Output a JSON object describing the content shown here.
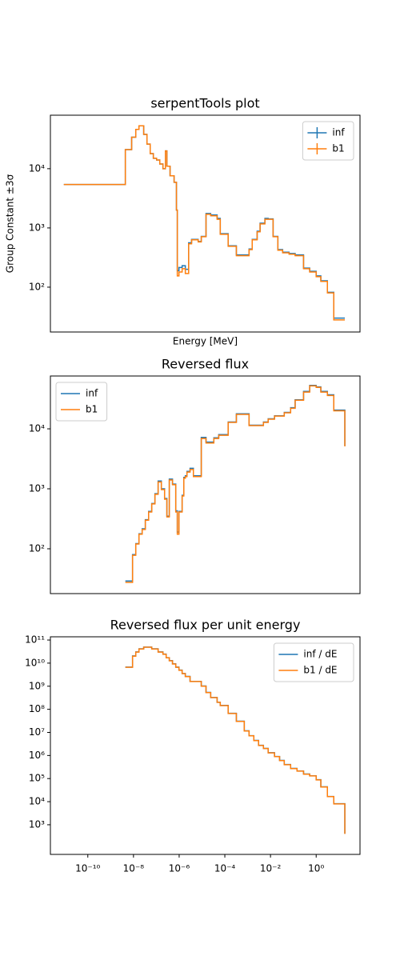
{
  "chart_data": [
    {
      "type": "step",
      "title": "serpentTools plot",
      "xlabel": "Energy [MeV]",
      "ylabel": "Group Constant  ±3σ",
      "xscale": "log",
      "yscale": "log",
      "xlim": [
        2.3e-12,
        83
      ],
      "ylim": [
        17.5,
        80000
      ],
      "yticks": [
        {
          "value": 100,
          "label": "10²"
        },
        {
          "value": 1000,
          "label": "10³"
        },
        {
          "value": 10000,
          "label": "10⁴"
        }
      ],
      "legend": "upper right",
      "legend_errorbars": true,
      "x": [
        8.9e-12,
        4.4e-09,
        8.3e-09,
        1.26e-08,
        1.74e-08,
        2.8e-08,
        3.9e-08,
        5.4e-08,
        7.4e-08,
        1.03e-07,
        1.42e-07,
        1.95e-07,
        2.5e-07,
        2.9e-07,
        4e-07,
        6e-07,
        7.6e-07,
        8.3e-07,
        9.8e-07,
        1.35e-06,
        1.86e-06,
        2.6e-06,
        3.5e-06,
        6.8e-06,
        9.3e-06,
        1.5e-05,
        2.4e-05,
        4.6e-05,
        6.3e-05,
        0.00014,
        0.00032,
        0.00115,
        0.00158,
        0.0026,
        0.0035,
        0.0057,
        0.0079,
        0.013,
        0.021,
        0.034,
        0.065,
        0.12,
        0.28,
        0.52,
        1.0,
        1.6,
        3.1,
        5.9,
        18
      ],
      "series": [
        {
          "name": "inf",
          "color": "#1f77b4",
          "values": [
            5400,
            21000,
            34000,
            46000,
            53000,
            38000,
            26000,
            18000,
            15000,
            14000,
            12000,
            10000,
            20000,
            11000,
            7600,
            5900,
            2000,
            190,
            215,
            230,
            200,
            560,
            640,
            590,
            720,
            1750,
            1650,
            1450,
            800,
            500,
            350,
            440,
            640,
            880,
            1200,
            1450,
            1420,
            720,
            430,
            390,
            370,
            350,
            210,
            185,
            155,
            128,
            82,
            30,
            30
          ]
        },
        {
          "name": "b1",
          "color": "#ff7f0e",
          "values": [
            5400,
            21000,
            34000,
            46000,
            53000,
            38000,
            26000,
            18000,
            15000,
            14000,
            12000,
            10000,
            20000,
            11000,
            7600,
            5900,
            2000,
            155,
            180,
            205,
            170,
            540,
            630,
            580,
            710,
            1700,
            1600,
            1400,
            780,
            490,
            340,
            430,
            630,
            860,
            1170,
            1400,
            1400,
            710,
            420,
            380,
            360,
            340,
            205,
            180,
            150,
            125,
            80,
            28,
            28
          ]
        }
      ]
    },
    {
      "type": "step",
      "title": "Reversed flux",
      "xscale": "log",
      "yscale": "log",
      "xlim": [
        2.3e-12,
        83
      ],
      "ylim": [
        17.9,
        76000
      ],
      "yticks": [
        {
          "value": 100,
          "label": "10²"
        },
        {
          "value": 1000,
          "label": "10³"
        },
        {
          "value": 10000,
          "label": "10⁴"
        }
      ],
      "legend": "upper left",
      "x": [
        4.4e-09,
        9.1e-09,
        1.26e-08,
        1.74e-08,
        2.4e-08,
        3.3e-08,
        4.6e-08,
        6.3e-08,
        8.7e-08,
        1.2e-07,
        1.66e-07,
        2.3e-07,
        2.9e-07,
        3.7e-07,
        5.1e-07,
        7.1e-07,
        8.3e-07,
        9.8e-07,
        1.35e-06,
        1.6e-06,
        1.86e-06,
        2.2e-06,
        3e-06,
        4.2e-06,
        9.3e-06,
        1.5e-05,
        3.3e-05,
        5.4e-05,
        0.00014,
        0.00032,
        0.00115,
        0.0049,
        0.0079,
        0.015,
        0.04,
        0.076,
        0.12,
        0.28,
        0.52,
        1.0,
        1.6,
        3.1,
        5.9,
        18
      ],
      "series": [
        {
          "name": "inf",
          "color": "#1f77b4",
          "values": [
            29,
            80,
            122,
            178,
            215,
            305,
            420,
            570,
            830,
            1350,
            1000,
            690,
            350,
            1450,
            1200,
            430,
            190,
            420,
            780,
            1550,
            1650,
            1950,
            2200,
            1650,
            7200,
            6000,
            7100,
            8000,
            13000,
            17800,
            11500,
            13000,
            14700,
            16500,
            18800,
            22500,
            30500,
            42000,
            53000,
            50000,
            42000,
            37000,
            20500,
            5200
          ]
        },
        {
          "name": "b1",
          "color": "#ff7f0e",
          "values": [
            27.5,
            78,
            120,
            175,
            210,
            300,
            410,
            560,
            810,
            1300,
            970,
            670,
            340,
            1400,
            1170,
            410,
            175,
            410,
            760,
            1500,
            1600,
            1900,
            2100,
            1600,
            6900,
            5800,
            6900,
            7800,
            12800,
            17400,
            11300,
            12800,
            14500,
            16300,
            18500,
            22000,
            30000,
            41000,
            52000,
            49000,
            41000,
            36000,
            20000,
            5100
          ]
        }
      ]
    },
    {
      "type": "step",
      "title": "Reversed flux per unit energy",
      "xscale": "log",
      "yscale": "log",
      "xlim": [
        2.3e-12,
        83
      ],
      "ylim": [
        52,
        138000000000.0
      ],
      "xticks": [
        {
          "value": 1e-10,
          "label": "10⁻¹⁰"
        },
        {
          "value": 1e-08,
          "label": "10⁻⁸"
        },
        {
          "value": 1e-06,
          "label": "10⁻⁶"
        },
        {
          "value": 0.0001,
          "label": "10⁻⁴"
        },
        {
          "value": 0.01,
          "label": "10⁻²"
        },
        {
          "value": 1,
          "label": "10⁰"
        }
      ],
      "yticks": [
        {
          "value": 1000,
          "label": "10³"
        },
        {
          "value": 10000,
          "label": "10⁴"
        },
        {
          "value": 100000,
          "label": "10⁵"
        },
        {
          "value": 1000000,
          "label": "10⁶"
        },
        {
          "value": 10000000,
          "label": "10⁷"
        },
        {
          "value": 100000000,
          "label": "10⁸"
        },
        {
          "value": 1000000000,
          "label": "10⁹"
        },
        {
          "value": 10000000000,
          "label": "10¹⁰"
        },
        {
          "value": 100000000000,
          "label": "10¹¹"
        }
      ],
      "legend": "upper right",
      "x": [
        4.4e-09,
        9.1e-09,
        1.26e-08,
        1.74e-08,
        2.8e-08,
        6.3e-08,
        1.2e-07,
        1.95e-07,
        2.7e-07,
        3.7e-07,
        5.1e-07,
        7.1e-07,
        9.8e-07,
        1.35e-06,
        1.86e-06,
        3e-06,
        9.3e-06,
        1.5e-05,
        2.4e-05,
        4.6e-05,
        6.3e-05,
        0.00014,
        0.00032,
        0.00071,
        0.00115,
        0.00186,
        0.003,
        0.0049,
        0.0079,
        0.015,
        0.025,
        0.04,
        0.076,
        0.145,
        0.28,
        0.52,
        1.0,
        1.6,
        3.1,
        5.9,
        18
      ],
      "series": [
        {
          "name": "inf / dE",
          "color": "#1f77b4",
          "values": [
            6700000000.0,
            20500000000.0,
            30500000000.0,
            41500000000.0,
            49500000000.0,
            41500000000.0,
            30500000000.0,
            24500000000.0,
            17200000000.0,
            12800000000.0,
            9300000000.0,
            6700000000.0,
            5000000000.0,
            3550000000.0,
            2650000000.0,
            1620000000.0,
            1020000000.0,
            540000000.0,
            325000000.0,
            202000000.0,
            147000000.0,
            67000000.0,
            30500000.0,
            11700000.0,
            7200000.0,
            4500000.0,
            2750000.0,
            2030000.0,
            1320000.0,
            900000.0,
            610000.0,
            405000.0,
            275000.0,
            213000.0,
            157000.0,
            132000.0,
            89000.0,
            44000.0,
            16800.0,
            8200,
            410
          ]
        },
        {
          "name": "b1 / dE",
          "color": "#ff7f0e",
          "values": [
            6600000000.0,
            20000000000.0,
            30000000000.0,
            41000000000.0,
            49000000000.0,
            41000000000.0,
            30000000000.0,
            24000000000.0,
            17000000000.0,
            12600000000.0,
            9200000000.0,
            6600000000.0,
            4900000000.0,
            3500000000.0,
            2600000000.0,
            1600000000.0,
            1000000000.0,
            530000000.0,
            320000000.0,
            200000000.0,
            145000000.0,
            66000000.0,
            30000000.0,
            11500000.0,
            7100000.0,
            4400000.0,
            2700000.0,
            2000000.0,
            1300000.0,
            890000.0,
            600000.0,
            400000.0,
            270000.0,
            210000.0,
            155000.0,
            130000.0,
            88000.0,
            43000.0,
            16500.0,
            8000,
            400
          ]
        }
      ]
    }
  ]
}
